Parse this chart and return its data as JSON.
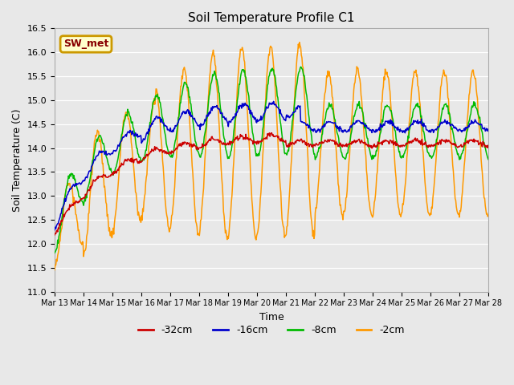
{
  "title": "Soil Temperature Profile C1",
  "xlabel": "Time",
  "ylabel": "Soil Temperature (C)",
  "ylim": [
    11.0,
    16.5
  ],
  "yticks": [
    11.0,
    11.5,
    12.0,
    12.5,
    13.0,
    13.5,
    14.0,
    14.5,
    15.0,
    15.5,
    16.0,
    16.5
  ],
  "bg_color": "#e8e8e8",
  "plot_bg_color": "#e8e8e8",
  "legend_label": "SW_met",
  "legend_box_facecolor": "#ffffcc",
  "legend_box_edgecolor": "#cc9900",
  "legend_text_color": "#880000",
  "line_colors": {
    "-32cm": "#cc0000",
    "-16cm": "#0000cc",
    "-8cm": "#00bb00",
    "-2cm": "#ff9900"
  },
  "xtick_labels": [
    "Mar 13",
    "Mar 14",
    "Mar 15",
    "Mar 16",
    "Mar 17",
    "Mar 18",
    "Mar 19",
    "Mar 20",
    "Mar 21",
    "Mar 22",
    "Mar 23",
    "Mar 24",
    "Mar 25",
    "Mar 26",
    "Mar 27",
    "Mar 28"
  ],
  "num_points": 720
}
